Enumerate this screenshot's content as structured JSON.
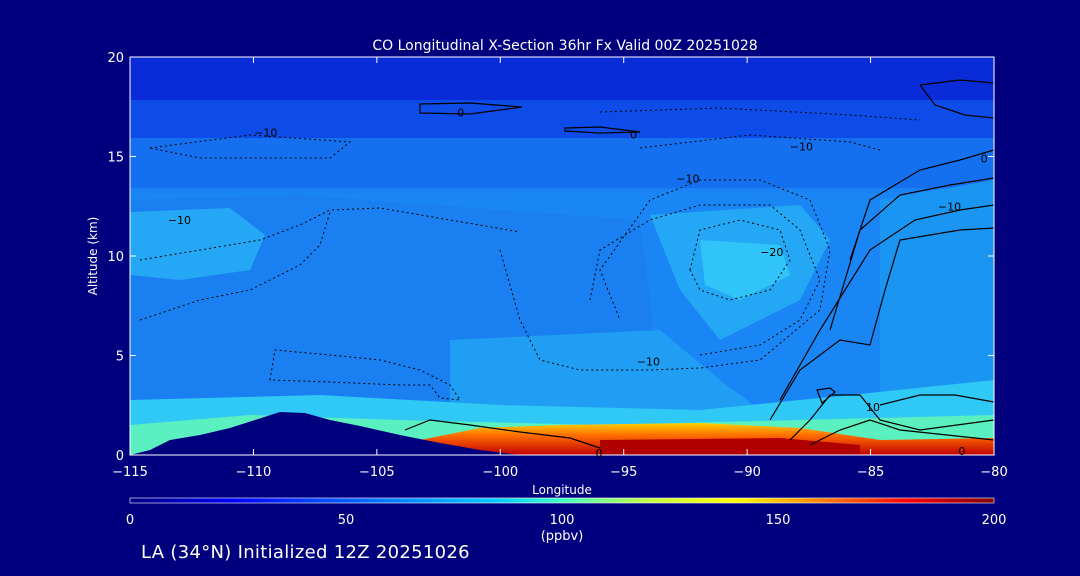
{
  "chart_data": {
    "type": "heatmap",
    "title": "CO Longitudinal X-Section 36hr  Fx Valid 00Z 20251028",
    "xlabel": "Longitude",
    "ylabel": "Altitude (km)",
    "xlim": [
      -115,
      -80
    ],
    "ylim": [
      0,
      20
    ],
    "xticks": [
      -115,
      -110,
      -105,
      -100,
      -95,
      -90,
      -85,
      -80
    ],
    "yticks": [
      0,
      5,
      10,
      15,
      20
    ],
    "colorbar": {
      "min": 0,
      "max": 200,
      "ticks": [
        0,
        50,
        100,
        150,
        200
      ],
      "label": "(ppbv)",
      "colors": [
        "#000080",
        "#0000ff",
        "#0070ff",
        "#00c8ff",
        "#40ffc0",
        "#c0ff40",
        "#ffff00",
        "#ff8000",
        "#ff0000",
        "#800000"
      ]
    },
    "contour_labels": [
      {
        "text": "0",
        "lon": -101.6,
        "alt": 17.2
      },
      {
        "text": "0",
        "lon": -94.6,
        "alt": 16.1
      },
      {
        "text": "-10",
        "lon": -109.5,
        "alt": 16.2
      },
      {
        "text": "-10",
        "lon": -87.8,
        "alt": 15.5
      },
      {
        "text": "0",
        "lon": -80.4,
        "alt": 14.9
      },
      {
        "text": "-10",
        "lon": -92.4,
        "alt": 13.9
      },
      {
        "text": "-10",
        "lon": -81.8,
        "alt": 12.5
      },
      {
        "text": "-10",
        "lon": -113.0,
        "alt": 11.8
      },
      {
        "text": "-20",
        "lon": -89.0,
        "alt": 10.2
      },
      {
        "text": "-10",
        "lon": -94.0,
        "alt": 4.7
      },
      {
        "text": "10",
        "lon": -84.9,
        "alt": 2.4
      },
      {
        "text": "0",
        "lon": -81.3,
        "alt": 0.2
      },
      {
        "text": "0",
        "lon": -96.0,
        "alt": 0.1
      }
    ]
  },
  "caption": "LA (34°N) Initialized 12Z 20251026"
}
